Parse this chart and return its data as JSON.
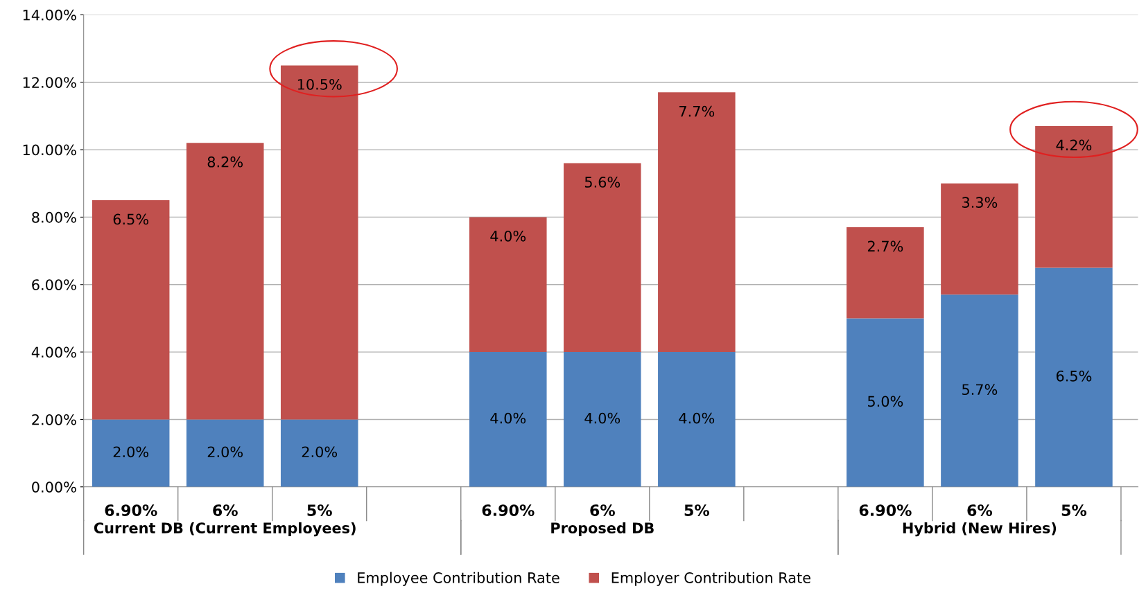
{
  "chart_data": {
    "type": "bar",
    "stacked": true,
    "categories": [
      "6.90%",
      "6%",
      "5%",
      null,
      "6.90%",
      "6%",
      "5%",
      null,
      "6.90%",
      "6%",
      "5%"
    ],
    "series": [
      {
        "name": "Employee Contribution Rate",
        "color": "#4f81bd",
        "values": [
          2.0,
          2.0,
          2.0,
          null,
          4.0,
          4.0,
          4.0,
          null,
          5.0,
          5.7,
          6.5
        ],
        "value_labels": [
          "2.0%",
          "2.0%",
          "2.0%",
          null,
          "4.0%",
          "4.0%",
          "4.0%",
          null,
          "5.0%",
          "5.7%",
          "6.5%"
        ]
      },
      {
        "name": "Employer Contribution Rate",
        "color": "#c0504d",
        "values": [
          6.5,
          8.2,
          10.5,
          null,
          4.0,
          5.6,
          7.7,
          null,
          2.7,
          3.3,
          4.2
        ],
        "value_labels": [
          "6.5%",
          "8.2%",
          "10.5%",
          null,
          "4.0%",
          "5.6%",
          "7.7%",
          null,
          "2.7%",
          "3.3%",
          "4.2%"
        ]
      }
    ],
    "annotations": [
      "Current DB (Current Employees)",
      "Proposed DB",
      "Hybrid (New Hires)"
    ],
    "ylim": [
      0,
      14
    ],
    "yticks": [
      {
        "value": 0,
        "label": "0.00%"
      },
      {
        "value": 2,
        "label": "2.00%"
      },
      {
        "value": 4,
        "label": "4.00%"
      },
      {
        "value": 6,
        "label": "6.00%"
      },
      {
        "value": 8,
        "label": "8.00%"
      },
      {
        "value": 10,
        "label": "10.00%"
      },
      {
        "value": 12,
        "label": "12.00%"
      },
      {
        "value": 14,
        "label": "14.00%"
      }
    ],
    "grid": "y",
    "legend": "bottom"
  }
}
